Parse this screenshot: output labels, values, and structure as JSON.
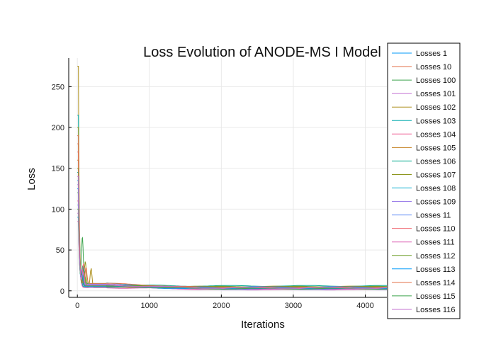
{
  "chart_data": {
    "type": "line",
    "title": "Loss Evolution of ANODE-MS I Model",
    "xlabel": "Iterations",
    "ylabel": "Loss",
    "xlim": [
      -120,
      4300
    ],
    "ylim": [
      -8,
      285
    ],
    "xticks": [
      0,
      1000,
      2000,
      3000,
      4000
    ],
    "yticks": [
      0,
      50,
      100,
      150,
      200,
      250
    ],
    "grid": true,
    "legend_position": "right-outside-top",
    "series": [
      {
        "name": "Losses 1",
        "color": "#009AFA",
        "peak": 135,
        "mid": 6,
        "tail": 2.8,
        "bump_at": 60,
        "bump": 12
      },
      {
        "name": "Losses 10",
        "color": "#E36F47",
        "peak": 180,
        "mid": 8,
        "tail": 3.5,
        "bump_at": 80,
        "bump": 18
      },
      {
        "name": "Losses 100",
        "color": "#3EA44E",
        "peak": 120,
        "mid": 5,
        "tail": 4.2,
        "bump_at": 70,
        "bump": 60
      },
      {
        "name": "Losses 101",
        "color": "#C371D2",
        "peak": 95,
        "mid": 7,
        "tail": 1.6,
        "bump_at": 50,
        "bump": 10
      },
      {
        "name": "Losses 102",
        "color": "#AC8E18",
        "peak": 275,
        "mid": 4,
        "tail": 5.2,
        "bump_at": 190,
        "bump": 24
      },
      {
        "name": "Losses 103",
        "color": "#00AAAE",
        "peak": 215,
        "mid": 9,
        "tail": 3.0,
        "bump_at": 90,
        "bump": 20
      },
      {
        "name": "Losses 104",
        "color": "#ED5E93",
        "peak": 110,
        "mid": 6,
        "tail": 2.2,
        "bump_at": 60,
        "bump": 8
      },
      {
        "name": "Losses 105",
        "color": "#C68225",
        "peak": 160,
        "mid": 5,
        "tail": 4.0,
        "bump_at": 100,
        "bump": 14
      },
      {
        "name": "Losses 106",
        "color": "#00A98D",
        "peak": 145,
        "mid": 7,
        "tail": 6.0,
        "bump_at": 75,
        "bump": 22
      },
      {
        "name": "Losses 107",
        "color": "#8E971E",
        "peak": 200,
        "mid": 6,
        "tail": 3.3,
        "bump_at": 110,
        "bump": 30
      },
      {
        "name": "Losses 108",
        "color": "#00A9CD",
        "peak": 90,
        "mid": 5,
        "tail": 2.5,
        "bump_at": 45,
        "bump": 12
      },
      {
        "name": "Losses 109",
        "color": "#9B7FE9",
        "peak": 130,
        "mid": 8,
        "tail": 1.9,
        "bump_at": 65,
        "bump": 16
      },
      {
        "name": "Losses 11",
        "color": "#618DF6",
        "peak": 105,
        "mid": 6,
        "tail": 4.6,
        "bump_at": 55,
        "bump": 10
      },
      {
        "name": "Losses 110",
        "color": "#F16C75",
        "peak": 170,
        "mid": 7,
        "tail": 3.8,
        "bump_at": 85,
        "bump": 26
      },
      {
        "name": "Losses 111",
        "color": "#DD64B5",
        "peak": 85,
        "mid": 4,
        "tail": 2.0,
        "bump_at": 40,
        "bump": 8
      },
      {
        "name": "Losses 112",
        "color": "#6B9D27",
        "peak": 150,
        "mid": 6,
        "tail": 5.0,
        "bump_at": 95,
        "bump": 18
      },
      {
        "name": "Losses 113",
        "color": "#009AFA",
        "peak": 125,
        "mid": 5,
        "tail": 3.1,
        "bump_at": 70,
        "bump": 14
      },
      {
        "name": "Losses 114",
        "color": "#E36F47",
        "peak": 190,
        "mid": 9,
        "tail": 4.4,
        "bump_at": 120,
        "bump": 20
      },
      {
        "name": "Losses 115",
        "color": "#3EA44E",
        "peak": 100,
        "mid": 6,
        "tail": 2.6,
        "bump_at": 60,
        "bump": 12
      },
      {
        "name": "Losses 116",
        "color": "#C371D2",
        "peak": 140,
        "mid": 7,
        "tail": 3.6,
        "bump_at": 80,
        "bump": 16
      }
    ],
    "iterations_max": 4300
  }
}
